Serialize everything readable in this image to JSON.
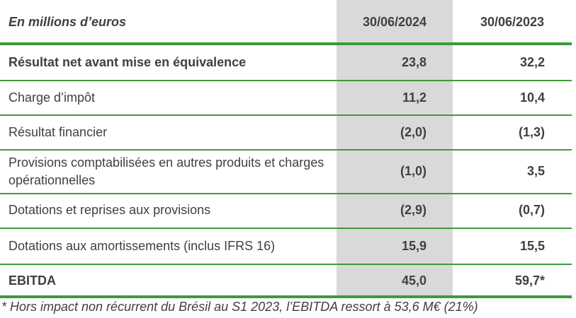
{
  "table": {
    "header": {
      "unit_label": "En millions d’euros",
      "col_2024": "30/06/2024",
      "col_2023": "30/06/2023"
    },
    "rows": [
      {
        "label": "Résultat net avant mise en équivalence",
        "v2024": "23,8",
        "v2023": "32,2"
      },
      {
        "label": "Charge d’impôt",
        "v2024": "11,2",
        "v2023": "10,4"
      },
      {
        "label": "Résultat financier",
        "v2024": "(2,0)",
        "v2023": "(1,3)"
      },
      {
        "label": "Provisions comptabilisées en autres produits et charges opérationnelles",
        "v2024": "(1,0)",
        "v2023": "3,5"
      },
      {
        "label": "Dotations et reprises aux provisions",
        "v2024": "(2,9)",
        "v2023": "(0,7)"
      },
      {
        "label": "Dotations aux amortissements (inclus IFRS 16)",
        "v2024": "15,9",
        "v2023": "15,5"
      },
      {
        "label": "EBITDA",
        "v2024": "45,0",
        "v2023": "59,7*"
      }
    ]
  },
  "footnote": "* Hors impact non récurrent du Brésil au S1 2023, l’EBITDA ressort à 53,6 M€ (21%)",
  "colors": {
    "rule_green": "#3f9a3c",
    "shade_grey": "#d9d9d9",
    "text": "#404040"
  }
}
